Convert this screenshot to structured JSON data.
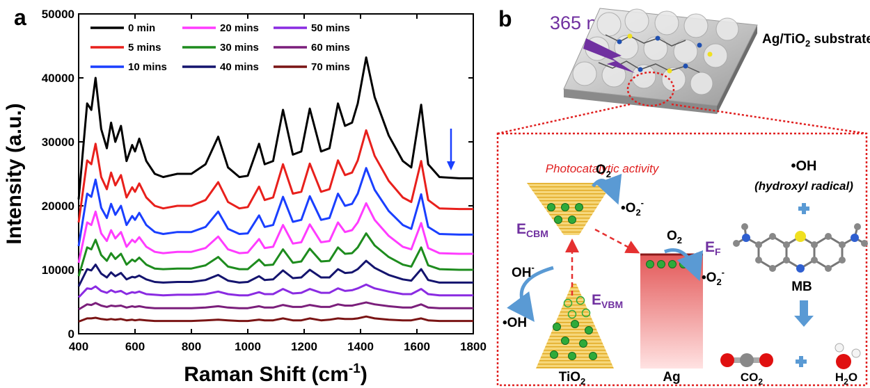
{
  "panel_labels": [
    "a",
    "b"
  ],
  "chart_data": {
    "type": "line",
    "x_label": [
      "Raman Shift (cm",
      "-1",
      ")"
    ],
    "y_label": "Intensity (a.u.)",
    "xlim": [
      400,
      1800
    ],
    "xticks": [
      400,
      600,
      800,
      1000,
      1200,
      1400,
      1600,
      1800
    ],
    "ylim": [
      0,
      50000
    ],
    "yticks": [
      0,
      10000,
      20000,
      30000,
      40000,
      50000
    ],
    "legend": "top-left",
    "x": [
      400,
      430,
      445,
      460,
      480,
      500,
      515,
      530,
      550,
      570,
      590,
      600,
      615,
      640,
      670,
      700,
      750,
      800,
      850,
      895,
      930,
      970,
      1000,
      1040,
      1060,
      1090,
      1125,
      1160,
      1190,
      1220,
      1260,
      1290,
      1320,
      1345,
      1370,
      1390,
      1420,
      1450,
      1500,
      1550,
      1580,
      1615,
      1640,
      1680,
      1750,
      1800
    ],
    "series": [
      {
        "name": "0 min",
        "color": "#000000",
        "values": [
          21000,
          36000,
          35000,
          40000,
          32000,
          29000,
          33000,
          30000,
          32500,
          27000,
          29500,
          28500,
          30500,
          27000,
          25000,
          24500,
          25000,
          25000,
          26500,
          30800,
          26000,
          24500,
          24700,
          29700,
          26500,
          27000,
          35000,
          28000,
          28500,
          35200,
          28500,
          29000,
          36000,
          32500,
          33000,
          36000,
          43200,
          37000,
          31000,
          27000,
          26000,
          35800,
          26500,
          24500,
          24300,
          24300
        ]
      },
      {
        "name": "5 mins",
        "color": "#e8201c",
        "values": [
          17400,
          27100,
          26500,
          29700,
          24500,
          22600,
          25200,
          23200,
          24800,
          21300,
          22900,
          22200,
          23500,
          21300,
          20000,
          19600,
          20000,
          20000,
          20900,
          23700,
          20600,
          19600,
          19800,
          23000,
          20900,
          21300,
          26500,
          21900,
          22200,
          26600,
          22200,
          22600,
          27100,
          24800,
          25200,
          27100,
          31800,
          27800,
          23900,
          21300,
          20600,
          27000,
          20900,
          19600,
          19500,
          19500
        ]
      },
      {
        "name": "10 mins",
        "color": "#1a3fff",
        "values": [
          13700,
          21900,
          21400,
          24100,
          19700,
          18100,
          20300,
          18600,
          20000,
          17000,
          18400,
          17800,
          18900,
          17000,
          15900,
          15600,
          15900,
          15900,
          16700,
          19100,
          16400,
          15600,
          15700,
          18500,
          16700,
          17000,
          21400,
          17500,
          17800,
          21500,
          17800,
          18100,
          21900,
          20000,
          20300,
          21900,
          25900,
          22500,
          19200,
          17000,
          16400,
          21800,
          16700,
          15600,
          15500,
          15500
        ]
      },
      {
        "name": "20 mins",
        "color": "#ff3cff",
        "values": [
          11100,
          17400,
          17000,
          19100,
          15700,
          14500,
          16200,
          14900,
          15900,
          13600,
          14700,
          14300,
          15100,
          13600,
          12800,
          12600,
          12800,
          12800,
          13400,
          15200,
          13200,
          12600,
          12700,
          14800,
          13400,
          13600,
          17000,
          14100,
          14300,
          17100,
          14300,
          14500,
          17400,
          15900,
          16200,
          17400,
          20400,
          17800,
          15300,
          13600,
          13200,
          17300,
          13400,
          12600,
          12500,
          12500
        ]
      },
      {
        "name": "30 mins",
        "color": "#1e8c1e",
        "values": [
          9000,
          13500,
          13200,
          14700,
          12300,
          11400,
          12600,
          11700,
          12500,
          10800,
          11600,
          11300,
          11900,
          10800,
          10200,
          10100,
          10200,
          10200,
          10700,
          12000,
          10500,
          10100,
          10100,
          11600,
          10700,
          10800,
          13200,
          11100,
          11300,
          13300,
          11300,
          11400,
          13500,
          12500,
          12600,
          13500,
          15700,
          13800,
          12000,
          10800,
          10500,
          13500,
          10700,
          10100,
          10000,
          10000
        ]
      },
      {
        "name": "40 mins",
        "color": "#14146e",
        "values": [
          7400,
          10100,
          9900,
          10800,
          9400,
          8800,
          9600,
          9000,
          9500,
          8500,
          8900,
          8800,
          9100,
          8500,
          8100,
          8000,
          8100,
          8100,
          8400,
          9200,
          8300,
          8000,
          8100,
          9000,
          8400,
          8500,
          9900,
          8700,
          8800,
          10000,
          8800,
          8800,
          10100,
          9500,
          9600,
          10100,
          11400,
          10300,
          9200,
          8500,
          8300,
          10100,
          8400,
          8000,
          8000,
          8000
        ]
      },
      {
        "name": "50 mins",
        "color": "#8a2be2",
        "values": [
          5700,
          7100,
          7000,
          7400,
          6700,
          6400,
          6800,
          6500,
          6700,
          6200,
          6500,
          6400,
          6600,
          6200,
          6100,
          6000,
          6100,
          6100,
          6200,
          6600,
          6200,
          6000,
          6000,
          6500,
          6200,
          6200,
          7000,
          6300,
          6400,
          7000,
          6400,
          6400,
          7100,
          6700,
          6800,
          7100,
          7700,
          7100,
          6600,
          6200,
          6200,
          7000,
          6200,
          6000,
          6000,
          6000
        ]
      },
      {
        "name": "60 mins",
        "color": "#7b1f7b",
        "values": [
          3800,
          4600,
          4500,
          4800,
          4400,
          4200,
          4400,
          4300,
          4400,
          4100,
          4300,
          4200,
          4300,
          4100,
          4000,
          4000,
          4000,
          4000,
          4100,
          4300,
          4100,
          4000,
          4000,
          4300,
          4100,
          4100,
          4500,
          4200,
          4200,
          4500,
          4200,
          4200,
          4600,
          4400,
          4400,
          4600,
          4900,
          4600,
          4300,
          4100,
          4100,
          4600,
          4100,
          4000,
          4000,
          4000
        ]
      },
      {
        "name": "70 mins",
        "color": "#7a1414",
        "values": [
          1900,
          2400,
          2400,
          2500,
          2300,
          2200,
          2300,
          2200,
          2300,
          2100,
          2200,
          2100,
          2200,
          2100,
          2000,
          2000,
          2000,
          2000,
          2100,
          2200,
          2100,
          2000,
          2000,
          2200,
          2100,
          2100,
          2400,
          2100,
          2100,
          2400,
          2100,
          2200,
          2400,
          2300,
          2300,
          2400,
          2700,
          2400,
          2200,
          2100,
          2100,
          2400,
          2100,
          2000,
          2000,
          2000
        ]
      }
    ]
  },
  "diagram": {
    "wavelength": "365 nm",
    "substrate": [
      "Ag/TiO",
      "2",
      " substrate"
    ],
    "activity": "Photocatalytic activity",
    "o2_left": [
      "O",
      "2"
    ],
    "superoxide_left": [
      "•O",
      "2",
      "-"
    ],
    "e_cbm": [
      "E",
      "CBM"
    ],
    "e_vbm": [
      "E",
      "VBM"
    ],
    "hydroxide": [
      "OH",
      "-"
    ],
    "hydroxyl_left": "•OH",
    "tio2": [
      "TiO",
      "2"
    ],
    "ag": "Ag",
    "o2_right": [
      "O",
      "2"
    ],
    "e_f": [
      "E",
      "F"
    ],
    "superoxide_right": [
      "•O",
      "2",
      "-"
    ],
    "hydroxyl_right": "•OH",
    "hydroxyl_name": "(hydroxyl radical)",
    "mb": "MB",
    "co2": [
      "CO",
      "2"
    ],
    "h2o": [
      "H",
      "2",
      "O"
    ]
  }
}
